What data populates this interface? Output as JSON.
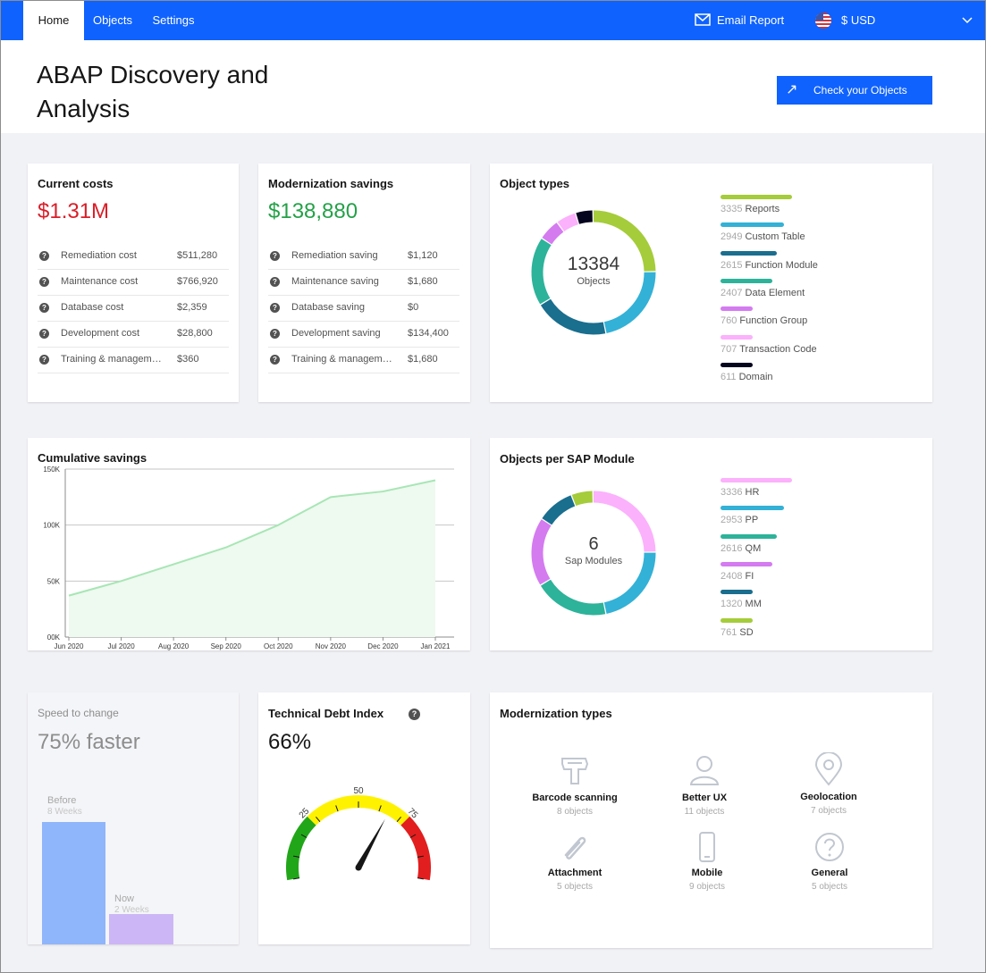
{
  "nav": {
    "tabs": [
      "Home",
      "Objects",
      "Settings"
    ],
    "email_report": "Email Report",
    "currency": "$ USD"
  },
  "header": {
    "title_line1": "ABAP Discovery and",
    "title_line2": "Analysis",
    "cta_label": "Check your Objects"
  },
  "current_costs": {
    "title": "Current costs",
    "total": "$1.31M",
    "total_color": "#da1e28",
    "rows": [
      {
        "label": "Remediation cost",
        "value": "$511,280"
      },
      {
        "label": "Maintenance cost",
        "value": "$766,920"
      },
      {
        "label": "Database cost",
        "value": "$2,359"
      },
      {
        "label": "Development cost",
        "value": "$28,800"
      },
      {
        "label": "Training & manageme...",
        "value": "$360"
      }
    ]
  },
  "modernization_savings": {
    "title": "Modernization savings",
    "total": "$138,880",
    "total_color": "#24a148",
    "rows": [
      {
        "label": "Remediation saving",
        "value": "$1,120"
      },
      {
        "label": "Maintenance saving",
        "value": "$1,680"
      },
      {
        "label": "Database saving",
        "value": "$0"
      },
      {
        "label": "Development saving",
        "value": "$134,400"
      },
      {
        "label": "Training & manageme...",
        "value": "$1,680"
      }
    ]
  },
  "object_types": {
    "title": "Object types",
    "center_value": "13384",
    "center_label": "Objects",
    "items": [
      {
        "count": "3335",
        "label": "Reports",
        "value": 3335,
        "color": "#a5cc3a"
      },
      {
        "count": "2949",
        "label": "Custom Table",
        "value": 2949,
        "color": "#33b1d6"
      },
      {
        "count": "2615",
        "label": "Function Module",
        "value": 2615,
        "color": "#1a6e8e"
      },
      {
        "count": "2407",
        "label": "Data Element",
        "value": 2407,
        "color": "#2db39a"
      },
      {
        "count": "760",
        "label": "Function Group",
        "value": 760,
        "color": "#d47bf0"
      },
      {
        "count": "707",
        "label": "Transaction Code",
        "value": 707,
        "color": "#fbb1fb"
      },
      {
        "count": "611",
        "label": "Domain",
        "value": 611,
        "color": "#06051f"
      }
    ]
  },
  "sap_modules": {
    "title": "Objects per SAP Module",
    "center_value": "6",
    "center_label": "Sap Modules",
    "items": [
      {
        "count": "3336",
        "label": "HR",
        "value": 3336,
        "color": "#fbb1fb"
      },
      {
        "count": "2953",
        "label": "PP",
        "value": 2953,
        "color": "#33b1d6"
      },
      {
        "count": "2616",
        "label": "QM",
        "value": 2616,
        "color": "#2db39a"
      },
      {
        "count": "2408",
        "label": "FI",
        "value": 2408,
        "color": "#d47bf0"
      },
      {
        "count": "1320",
        "label": "MM",
        "value": 1320,
        "color": "#1a6e8e"
      },
      {
        "count": "761",
        "label": "SD",
        "value": 761,
        "color": "#a5cc3a"
      }
    ]
  },
  "cumulative_savings": {
    "title": "Cumulative savings",
    "line_color": "#a7e6b5",
    "fill_color": "#eef9ef"
  },
  "chart_data": {
    "type": "area",
    "x": [
      "Jun 2020",
      "Jul 2020",
      "Aug 2020",
      "Sep 2020",
      "Oct 2020",
      "Nov 2020",
      "Dec 2020",
      "Jan 2021"
    ],
    "values": [
      37000,
      50000,
      65000,
      80000,
      100000,
      125000,
      130000,
      140000
    ],
    "x_ticks": [
      "Jun 2020",
      "Jul 2020",
      "Aug 2020",
      "Sep 2020",
      "Oct 2020",
      "Nov 2020",
      "Dec 2020",
      "Jan 2021"
    ],
    "y_ticks": [
      "00K",
      "50K",
      "100K",
      "150K"
    ],
    "ylim": [
      0,
      150000
    ],
    "title": "Cumulative savings",
    "grid": true
  },
  "speed": {
    "title": "Speed to change",
    "headline": "75% faster",
    "before_label": "Before",
    "before_sub": "8 Weeks",
    "now_label": "Now",
    "now_sub": "2 Weeks",
    "before_weeks": 8,
    "now_weeks": 2,
    "before_color": "#8fb5fb",
    "now_color": "#cdb6f5"
  },
  "tech_debt": {
    "title": "Technical Debt Index",
    "value": "66%",
    "value_num": 66,
    "gauge_labels": [
      "25",
      "50",
      "75"
    ]
  },
  "modernization_types": {
    "title": "Modernization types",
    "items": [
      {
        "icon": "barcode-scanner-icon",
        "label": "Barcode scanning",
        "sub": "8 objects"
      },
      {
        "icon": "user-icon",
        "label": "Better UX",
        "sub": "11 objects"
      },
      {
        "icon": "location-pin-icon",
        "label": "Geolocation",
        "sub": "7 objects"
      },
      {
        "icon": "paperclip-icon",
        "label": "Attachment",
        "sub": "5 objects"
      },
      {
        "icon": "mobile-icon",
        "label": "Mobile",
        "sub": "9 objects"
      },
      {
        "icon": "question-circle-icon",
        "label": "General",
        "sub": "5 objects"
      }
    ]
  }
}
